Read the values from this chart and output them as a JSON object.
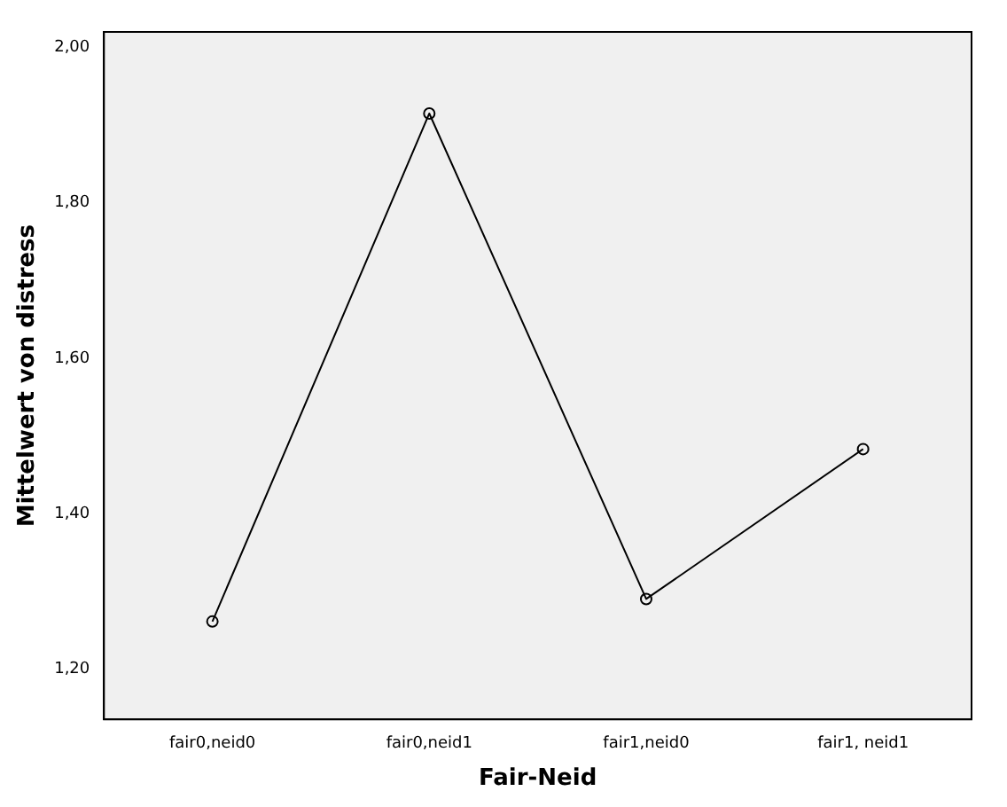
{
  "chart_data": {
    "type": "line",
    "xlabel": "Fair-Neid",
    "ylabel": "Mittelwert von distress",
    "categories": [
      "fair0,neid0",
      "fair0,neid1",
      "fair1,neid0",
      "fair1, neid1"
    ],
    "series": [
      {
        "color": "#000000",
        "values": [
          1.261,
          1.915,
          1.29,
          1.483
        ]
      }
    ],
    "ylim": [
      1.135,
      2.02
    ],
    "yticks": [
      {
        "value": 1.2,
        "label": "1,20"
      },
      {
        "value": 1.4,
        "label": "1,40"
      },
      {
        "value": 1.6,
        "label": "1,60"
      },
      {
        "value": 1.8,
        "label": "1,80"
      },
      {
        "value": 2.0,
        "label": "2,00"
      }
    ],
    "grid": false,
    "legend": false,
    "marker": "circle",
    "line_style": "solid"
  }
}
